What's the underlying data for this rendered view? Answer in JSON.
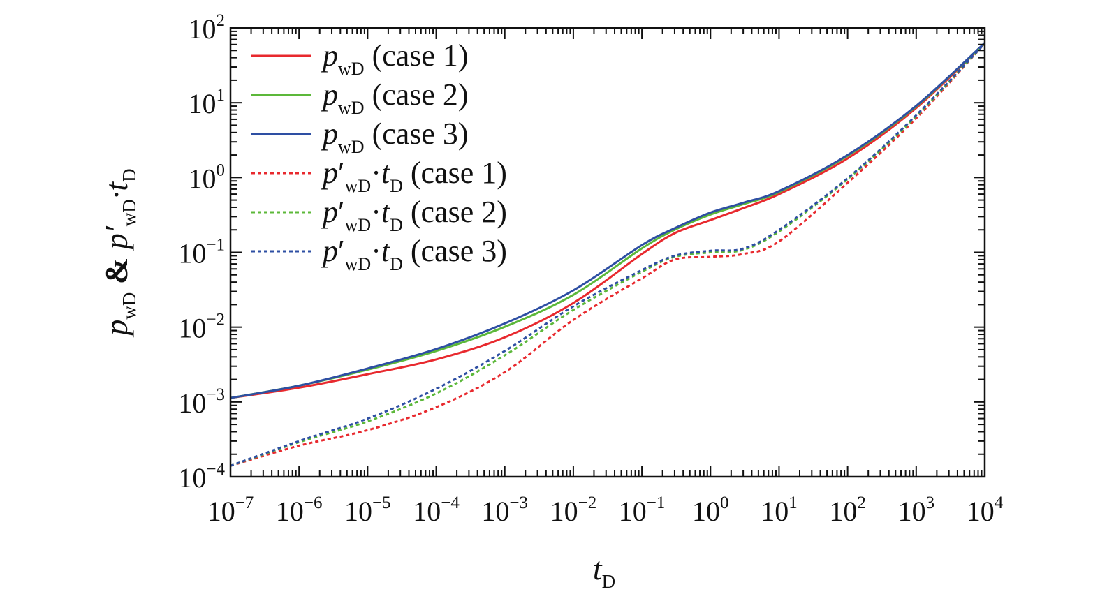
{
  "chart_data": {
    "type": "line",
    "x_scale": "log",
    "y_scale": "log",
    "xlim": [
      1e-07,
      10000
    ],
    "ylim": [
      0.0001,
      100
    ],
    "xlabel": "t_D",
    "ylabel": "p_wD & p'_wD·t_D",
    "x_ticks": [
      1e-07,
      1e-06,
      1e-05,
      0.0001,
      0.001,
      0.01,
      0.1,
      1,
      10,
      100,
      1000,
      10000
    ],
    "y_ticks": [
      0.0001,
      0.001,
      0.01,
      0.1,
      1,
      10,
      100
    ],
    "x_tick_labels": [
      {
        "base": "10",
        "exp": "−7"
      },
      {
        "base": "10",
        "exp": "−6"
      },
      {
        "base": "10",
        "exp": "−5"
      },
      {
        "base": "10",
        "exp": "−4"
      },
      {
        "base": "10",
        "exp": "−3"
      },
      {
        "base": "10",
        "exp": "−2"
      },
      {
        "base": "10",
        "exp": "−1"
      },
      {
        "base": "10",
        "exp": "0"
      },
      {
        "base": "10",
        "exp": "1"
      },
      {
        "base": "10",
        "exp": "2"
      },
      {
        "base": "10",
        "exp": "3"
      },
      {
        "base": "10",
        "exp": "4"
      }
    ],
    "y_tick_labels": [
      {
        "base": "10",
        "exp": "−4"
      },
      {
        "base": "10",
        "exp": "−3"
      },
      {
        "base": "10",
        "exp": "−2"
      },
      {
        "base": "10",
        "exp": "−1"
      },
      {
        "base": "10",
        "exp": "0"
      },
      {
        "base": "10",
        "exp": "1"
      },
      {
        "base": "10",
        "exp": "2"
      }
    ],
    "grid": false,
    "legend_position": "top-left",
    "series": [
      {
        "name": "p_wD (case 1)",
        "label": {
          "main": "p",
          "sub": "wD",
          "prime": false,
          "rest": " (case 1)"
        },
        "color": "#e8292e",
        "dash": "solid",
        "x": [
          1e-07,
          1e-06,
          1e-05,
          0.0001,
          0.001,
          0.01,
          0.1,
          0.3,
          1,
          3,
          10,
          100,
          1000,
          10000
        ],
        "y": [
          0.00113,
          0.00155,
          0.00235,
          0.0037,
          0.0073,
          0.021,
          0.095,
          0.18,
          0.27,
          0.39,
          0.6,
          1.8,
          8.5,
          62
        ]
      },
      {
        "name": "p_wD (case 2)",
        "label": {
          "main": "p",
          "sub": "wD",
          "prime": false,
          "rest": " (case 2)"
        },
        "color": "#5cb83a",
        "dash": "solid",
        "x": [
          1e-07,
          1e-06,
          1e-05,
          0.0001,
          0.001,
          0.01,
          0.1,
          0.3,
          1,
          3,
          10,
          100,
          1000,
          10000
        ],
        "y": [
          0.00113,
          0.00165,
          0.0027,
          0.0048,
          0.0101,
          0.027,
          0.113,
          0.2,
          0.32,
          0.44,
          0.64,
          1.95,
          8.9,
          63
        ]
      },
      {
        "name": "p_wD (case 3)",
        "label": {
          "main": "p",
          "sub": "wD",
          "prime": false,
          "rest": " (case 3)"
        },
        "color": "#2e4fa3",
        "dash": "solid",
        "x": [
          1e-07,
          1e-06,
          1e-05,
          0.0001,
          0.001,
          0.01,
          0.1,
          0.3,
          1,
          3,
          10,
          100,
          1000,
          10000
        ],
        "y": [
          0.00113,
          0.00165,
          0.0028,
          0.0051,
          0.0112,
          0.031,
          0.125,
          0.21,
          0.34,
          0.46,
          0.66,
          2.0,
          9.1,
          63
        ]
      },
      {
        "name": "p'_wD·t_D (case 1)",
        "label": {
          "main": "p",
          "sub": "wD",
          "prime": true,
          "rest": " (case 1)"
        },
        "color": "#e8292e",
        "dash": "dotted",
        "x": [
          1e-07,
          1e-06,
          1e-05,
          0.0001,
          0.001,
          0.01,
          0.1,
          0.3,
          1,
          3,
          10,
          100,
          1000,
          10000
        ],
        "y": [
          0.00014,
          0.00026,
          0.00042,
          0.00085,
          0.0025,
          0.0125,
          0.045,
          0.08,
          0.087,
          0.095,
          0.14,
          0.85,
          6.2,
          62
        ]
      },
      {
        "name": "p'_wD·t_D (case 2)",
        "label": {
          "main": "p",
          "sub": "wD",
          "prime": true,
          "rest": " (case 2)"
        },
        "color": "#5cb83a",
        "dash": "dotted",
        "x": [
          1e-07,
          1e-06,
          1e-05,
          0.0001,
          0.001,
          0.01,
          0.1,
          0.3,
          1,
          3,
          10,
          100,
          1000,
          10000
        ],
        "y": [
          0.00014,
          0.00029,
          0.00055,
          0.0013,
          0.0042,
          0.017,
          0.055,
          0.087,
          0.1,
          0.108,
          0.19,
          0.95,
          6.6,
          62
        ]
      },
      {
        "name": "p'_wD·t_D (case 3)",
        "label": {
          "main": "p",
          "sub": "wD",
          "prime": true,
          "rest": " (case 3)"
        },
        "color": "#2e4fa3",
        "dash": "dotted",
        "x": [
          1e-07,
          1e-06,
          1e-05,
          0.0001,
          0.001,
          0.01,
          0.1,
          0.3,
          1,
          3,
          10,
          100,
          1000,
          10000
        ],
        "y": [
          0.00014,
          0.0003,
          0.0006,
          0.0015,
          0.0048,
          0.019,
          0.058,
          0.09,
          0.105,
          0.112,
          0.2,
          0.98,
          6.8,
          62
        ]
      }
    ]
  }
}
